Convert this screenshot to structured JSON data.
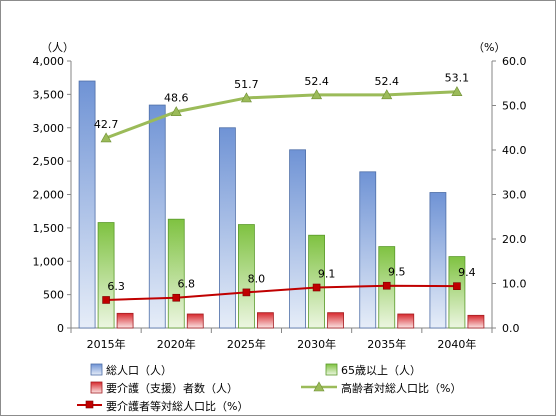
{
  "chart_data": {
    "type": "bar",
    "categories": [
      "2015年",
      "2020年",
      "2025年",
      "2030年",
      "2035年",
      "2040年"
    ],
    "left_axis": {
      "unit": "（人）",
      "ylim": [
        0,
        4000
      ],
      "ticks": [
        "0",
        "500",
        "1,000",
        "1,500",
        "2,000",
        "2,500",
        "3,000",
        "3,500",
        "4,000"
      ]
    },
    "right_axis": {
      "unit": "（%）",
      "ylim": [
        0,
        60
      ],
      "ticks": [
        "0.0",
        "10.0",
        "20.0",
        "30.0",
        "40.0",
        "50.0",
        "60.0"
      ]
    },
    "bar_series": [
      {
        "name": "総人口（人）",
        "values": [
          3700,
          3340,
          3000,
          2670,
          2340,
          2030
        ],
        "color": "#6f93d5"
      },
      {
        "name": "65歳以上（人）",
        "values": [
          1580,
          1630,
          1550,
          1390,
          1220,
          1070
        ],
        "color": "#7fc241"
      },
      {
        "name": "要介護（支援）者数（人）",
        "values": [
          220,
          210,
          230,
          230,
          210,
          190
        ],
        "color": "#d7282d"
      }
    ],
    "line_series": [
      {
        "name": "高齢者対総人口比（%）",
        "values": [
          42.7,
          48.6,
          51.7,
          52.4,
          52.4,
          53.1
        ],
        "labels": [
          "42.7",
          "48.6",
          "51.7",
          "52.4",
          "52.4",
          "53.1"
        ],
        "color": "#9bbb59",
        "marker": "triangle"
      },
      {
        "name": "要介護者等対総人口比（%）",
        "values": [
          6.3,
          6.8,
          8.0,
          9.1,
          9.5,
          9.4
        ],
        "labels": [
          "6.3",
          "6.8",
          "8.0",
          "9.1",
          "9.5",
          "9.4"
        ],
        "color": "#c00000",
        "marker": "square"
      }
    ],
    "grid": false,
    "legend_position": "bottom"
  }
}
